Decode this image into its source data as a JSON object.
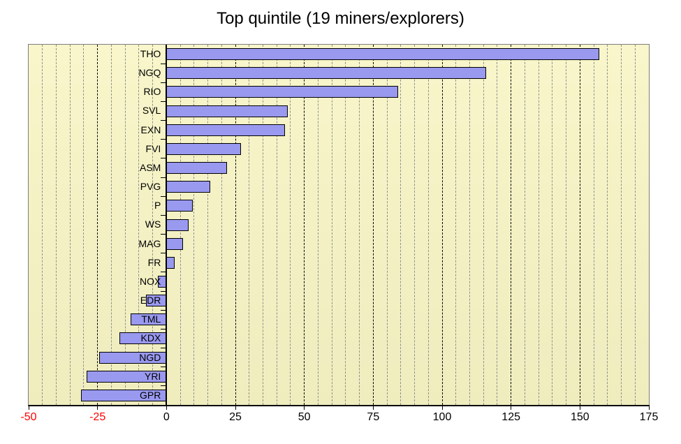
{
  "chart_data": {
    "type": "bar",
    "orientation": "horizontal",
    "title": "Top quintile (19 miners/explorers)",
    "categories": [
      "THO",
      "NGQ",
      "RIO",
      "SVL",
      "EXN",
      "FVI",
      "ASM",
      "PVG",
      "P",
      "WS",
      "MAG",
      "FR",
      "NOX",
      "EDR",
      "TML",
      "KDX",
      "NGD",
      "YRI",
      "GPR"
    ],
    "values": [
      157,
      116,
      84,
      44,
      43,
      27,
      22,
      16,
      9.5,
      8,
      6,
      3,
      -3,
      -7.5,
      -13,
      -17,
      -24.5,
      -29,
      -31
    ],
    "xlabel": "",
    "ylabel": "",
    "xlim": [
      -50,
      175
    ],
    "x_ticks": [
      -50,
      -25,
      0,
      25,
      50,
      75,
      100,
      125,
      150,
      175
    ],
    "minor_grid_step": 5,
    "major_grid_step": 25,
    "grid": "vertical only: minor gray dashed every 5, major black dashed every 25",
    "legend": "none",
    "colors": {
      "bar_fill": "#9999F0",
      "bar_border": "#000000",
      "plot_bg_top": "#F8F6CA",
      "plot_bg_bottom": "#EFEDBE",
      "minor_grid": "#8F8F8F",
      "major_grid": "#000000",
      "axis": "#000000",
      "negative_tick_label": "#FF0000",
      "positive_tick_label": "#000000"
    }
  }
}
